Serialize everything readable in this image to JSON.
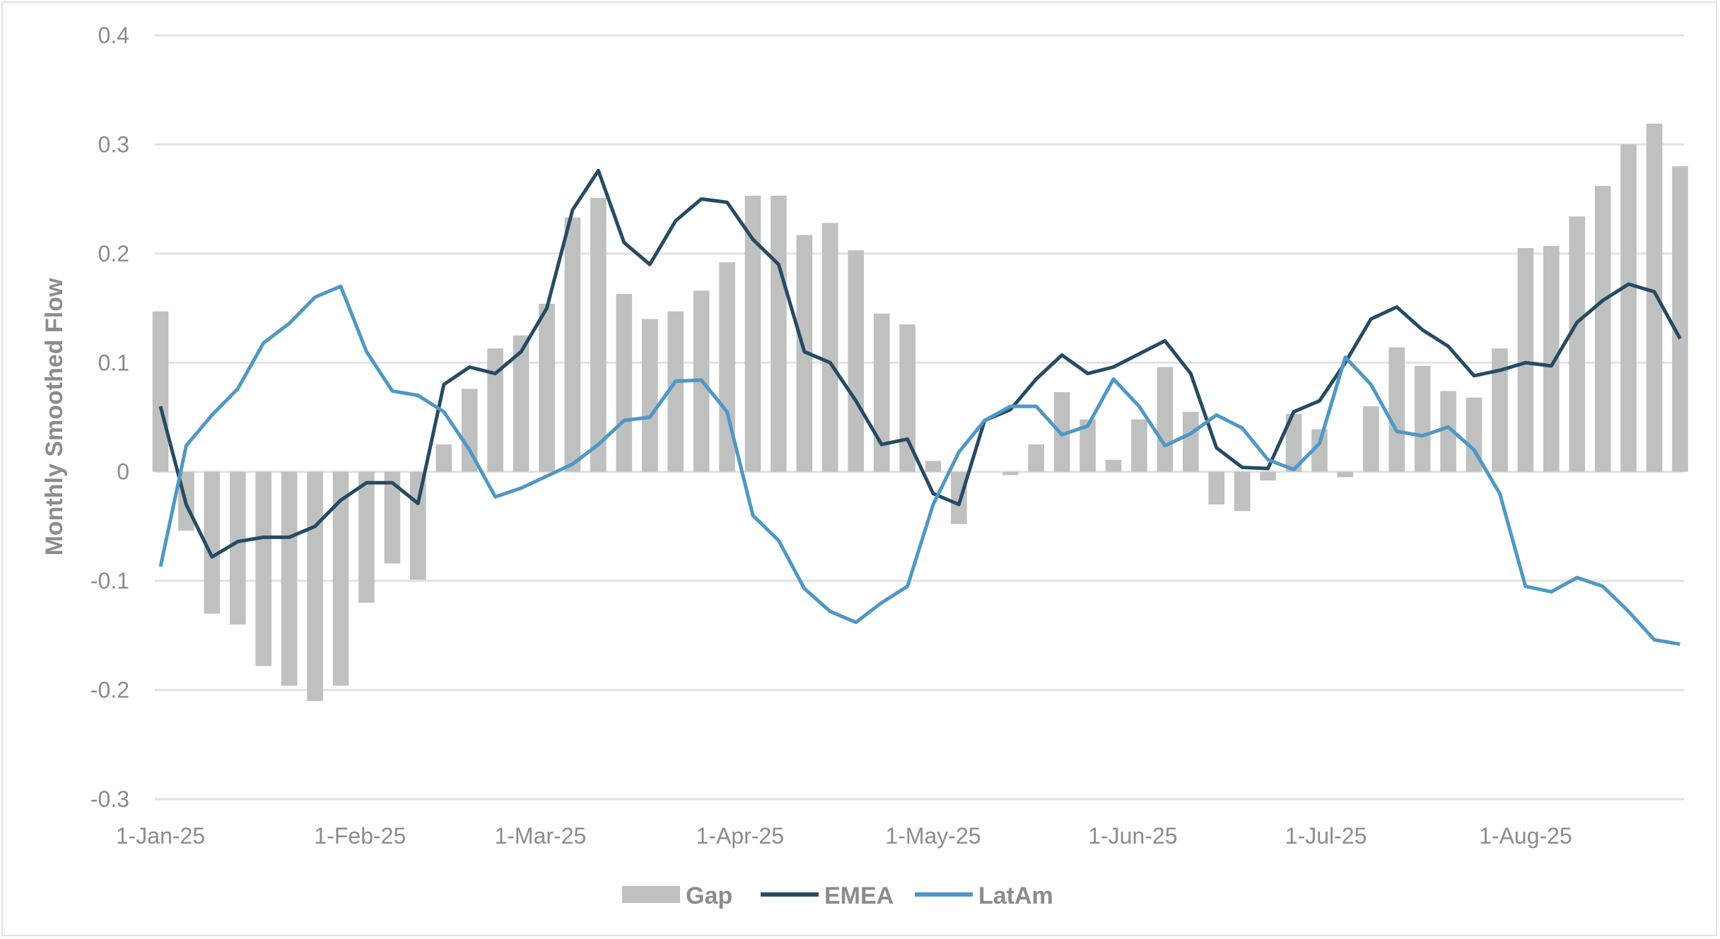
{
  "chart_data": {
    "type": "bar+line",
    "title": "",
    "xlabel": "",
    "ylabel": "Monthly Smoothed Flow",
    "ylim": [
      -0.3,
      0.4
    ],
    "yticks": [
      "0.4",
      "0.3",
      "0.2",
      "0.1",
      "0",
      "-0.1",
      "-0.2",
      "-0.3"
    ],
    "ytick_values": [
      0.4,
      0.3,
      0.2,
      0.1,
      0,
      -0.1,
      -0.2,
      -0.3
    ],
    "xlim": [
      "2025-01-01",
      "2025-08-25"
    ],
    "xticks": [
      {
        "date": "2025-01-01",
        "label": "1-Jan-25"
      },
      {
        "date": "2025-02-01",
        "label": "1-Feb-25"
      },
      {
        "date": "2025-03-01",
        "label": "1-Mar-25"
      },
      {
        "date": "2025-04-01",
        "label": "1-Apr-25"
      },
      {
        "date": "2025-05-01",
        "label": "1-May-25"
      },
      {
        "date": "2025-06-01",
        "label": "1-Jun-25"
      },
      {
        "date": "2025-07-01",
        "label": "1-Jul-25"
      },
      {
        "date": "2025-08-01",
        "label": "1-Aug-25"
      }
    ],
    "grid": true,
    "legend_position": "bottom",
    "x": [
      "2025-01-01",
      "2025-01-05",
      "2025-01-09",
      "2025-01-13",
      "2025-01-17",
      "2025-01-21",
      "2025-01-25",
      "2025-01-29",
      "2025-02-02",
      "2025-02-06",
      "2025-02-10",
      "2025-02-14",
      "2025-02-18",
      "2025-02-22",
      "2025-02-26",
      "2025-03-02",
      "2025-03-06",
      "2025-03-10",
      "2025-03-14",
      "2025-03-18",
      "2025-03-22",
      "2025-03-26",
      "2025-03-30",
      "2025-04-03",
      "2025-04-07",
      "2025-04-11",
      "2025-04-15",
      "2025-04-19",
      "2025-04-23",
      "2025-04-27",
      "2025-05-01",
      "2025-05-05",
      "2025-05-09",
      "2025-05-13",
      "2025-05-17",
      "2025-05-21",
      "2025-05-25",
      "2025-05-29",
      "2025-06-02",
      "2025-06-06",
      "2025-06-10",
      "2025-06-14",
      "2025-06-18",
      "2025-06-22",
      "2025-06-26",
      "2025-06-30",
      "2025-07-04",
      "2025-07-08",
      "2025-07-12",
      "2025-07-16",
      "2025-07-20",
      "2025-07-24",
      "2025-07-28",
      "2025-08-01",
      "2025-08-05",
      "2025-08-09",
      "2025-08-13",
      "2025-08-17",
      "2025-08-21",
      "2025-08-25"
    ],
    "series": [
      {
        "name": "Gap",
        "type": "bar",
        "color": "#bfc0c0",
        "values": [
          0.147,
          -0.054,
          -0.13,
          -0.14,
          -0.178,
          -0.196,
          -0.21,
          -0.196,
          -0.12,
          -0.084,
          -0.099,
          0.025,
          0.076,
          0.113,
          0.125,
          0.154,
          0.233,
          0.251,
          0.163,
          0.14,
          0.147,
          0.166,
          0.192,
          0.253,
          0.253,
          0.217,
          0.228,
          0.203,
          0.145,
          0.135,
          0.01,
          -0.048,
          0.0,
          -0.003,
          0.025,
          0.073,
          0.048,
          0.011,
          0.048,
          0.096,
          0.055,
          -0.03,
          -0.036,
          -0.008,
          0.053,
          0.039,
          -0.005,
          0.06,
          0.114,
          0.097,
          0.074,
          0.068,
          0.113,
          0.205,
          0.207,
          0.234,
          0.262,
          0.3,
          0.319,
          0.28
        ]
      },
      {
        "name": "EMEA",
        "type": "line",
        "color": "#264b63",
        "values": [
          0.06,
          -0.03,
          -0.078,
          -0.064,
          -0.06,
          -0.06,
          -0.05,
          -0.026,
          -0.01,
          -0.01,
          -0.029,
          0.08,
          0.096,
          0.09,
          0.11,
          0.15,
          0.24,
          0.276,
          0.21,
          0.19,
          0.23,
          0.25,
          0.247,
          0.213,
          0.19,
          0.11,
          0.1,
          0.065,
          0.025,
          0.03,
          -0.02,
          -0.03,
          0.047,
          0.057,
          0.085,
          0.107,
          0.09,
          0.096,
          0.108,
          0.12,
          0.09,
          0.022,
          0.004,
          0.003,
          0.055,
          0.065,
          0.1,
          0.14,
          0.151,
          0.13,
          0.115,
          0.088,
          0.093,
          0.1,
          0.097,
          0.137,
          0.157,
          0.172,
          0.165,
          0.122
        ]
      },
      {
        "name": "LatAm",
        "type": "line",
        "color": "#4f97c6",
        "values": [
          -0.087,
          0.024,
          0.052,
          0.076,
          0.118,
          0.136,
          0.16,
          0.17,
          0.11,
          0.074,
          0.07,
          0.055,
          0.02,
          -0.023,
          -0.015,
          -0.004,
          0.007,
          0.025,
          0.047,
          0.05,
          0.083,
          0.084,
          0.055,
          -0.04,
          -0.063,
          -0.107,
          -0.128,
          -0.138,
          -0.12,
          -0.105,
          -0.03,
          0.018,
          0.047,
          0.06,
          0.06,
          0.034,
          0.042,
          0.085,
          0.06,
          0.024,
          0.035,
          0.052,
          0.04,
          0.011,
          0.002,
          0.026,
          0.105,
          0.08,
          0.037,
          0.033,
          0.041,
          0.02,
          -0.02,
          -0.105,
          -0.11,
          -0.097,
          -0.105,
          -0.128,
          -0.154,
          -0.158
        ]
      }
    ]
  }
}
